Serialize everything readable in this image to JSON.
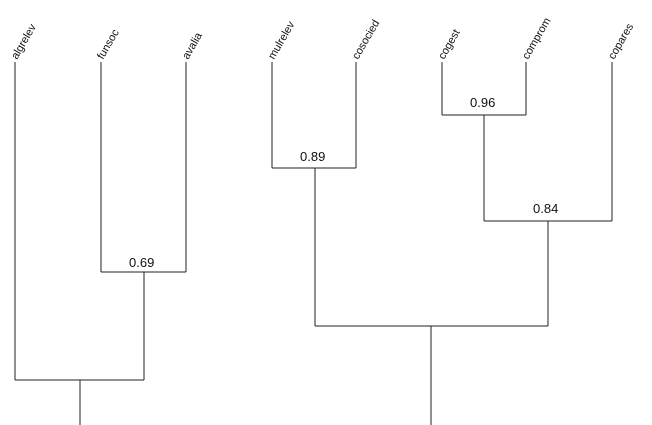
{
  "leaves": [
    {
      "id": "algrelev",
      "label": "algrelev"
    },
    {
      "id": "funsoc",
      "label": "funsoc"
    },
    {
      "id": "avalia",
      "label": "avalia"
    },
    {
      "id": "mulrelev",
      "label": "mulrelev"
    },
    {
      "id": "cosocied",
      "label": "cosocied"
    },
    {
      "id": "cogest",
      "label": "cogest"
    },
    {
      "id": "comprom",
      "label": "comprom"
    },
    {
      "id": "copares",
      "label": "copares"
    }
  ],
  "node_labels": {
    "funsoc_avalia": "0.69",
    "mulrelev_cosocied": "0.89",
    "cogest_comprom": "0.96",
    "cogest_comprom_copares": "0.84"
  },
  "colors": {
    "line": "#222222",
    "background": "#ffffff"
  }
}
